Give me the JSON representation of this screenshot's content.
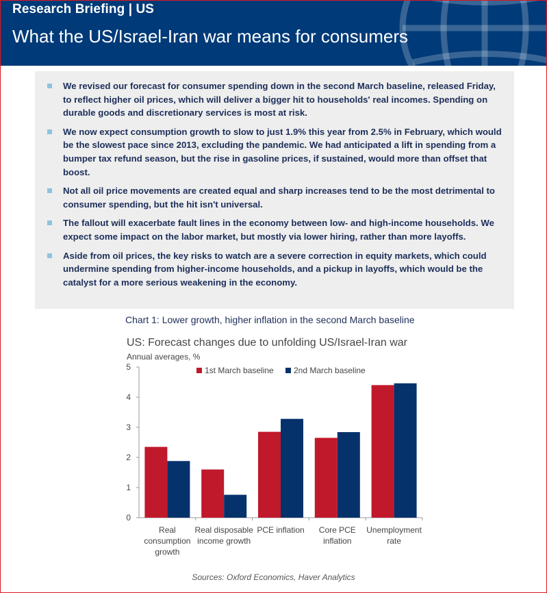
{
  "header": {
    "kicker": "Research Briefing | US",
    "title": "What the US/Israel-Iran war means for consumers"
  },
  "summary": {
    "bullets": [
      "We revised our forecast for consumer spending down in the second March baseline, released Friday, to reflect higher oil prices, which will deliver a bigger hit to households' real incomes. Spending on durable goods and discretionary services is most at risk.",
      "We now expect consumption growth to slow to just 1.9% this year from 2.5% in February, which would be the slowest pace since 2013, excluding the pandemic. We had anticipated a lift in spending from a bumper tax refund season, but the rise in gasoline prices, if sustained, would more than offset that boost.",
      "Not all oil price movements are created equal and sharp increases tend to be the most detrimental to consumer spending, but the hit isn't universal.",
      "The fallout will exacerbate fault lines in the economy between low- and high-income households. We expect some impact on the labor market, but mostly via lower hiring, rather than more layoffs.",
      "Aside from oil prices, the key risks to watch are a severe correction in equity markets, which could undermine spending from higher-income households, and a pickup in layoffs, which would be the catalyst for a more serious weakening in the economy."
    ]
  },
  "chart_caption": "Chart 1: Lower growth, higher inflation in the second March baseline",
  "source": "Sources: Oxford Economics, Haver Analytics",
  "colors": {
    "header_bg": "#003a78",
    "series1": "#c0192b",
    "series2": "#06326b",
    "border": "#e0161b"
  },
  "chart_data": {
    "type": "bar",
    "title": "US: Forecast changes due to unfolding US/Israel-Iran war",
    "ylabel": "Annual averages, %",
    "ylim": [
      0,
      5
    ],
    "yticks": [
      0,
      1,
      2,
      3,
      4,
      5
    ],
    "categories": [
      [
        "Real",
        "consumption",
        "growth"
      ],
      [
        "Real disposable",
        "income growth"
      ],
      [
        "PCE inflation"
      ],
      [
        "Core PCE",
        "inflation"
      ],
      [
        "Unemployment",
        "rate"
      ]
    ],
    "series": [
      {
        "name": "1st March baseline",
        "color": "#c0192b",
        "values": [
          2.35,
          1.6,
          2.85,
          2.65,
          4.4
        ]
      },
      {
        "name": "2nd March baseline",
        "color": "#06326b",
        "values": [
          1.88,
          0.76,
          3.28,
          2.84,
          4.46
        ]
      }
    ],
    "legend": "top-center",
    "grid": false
  }
}
